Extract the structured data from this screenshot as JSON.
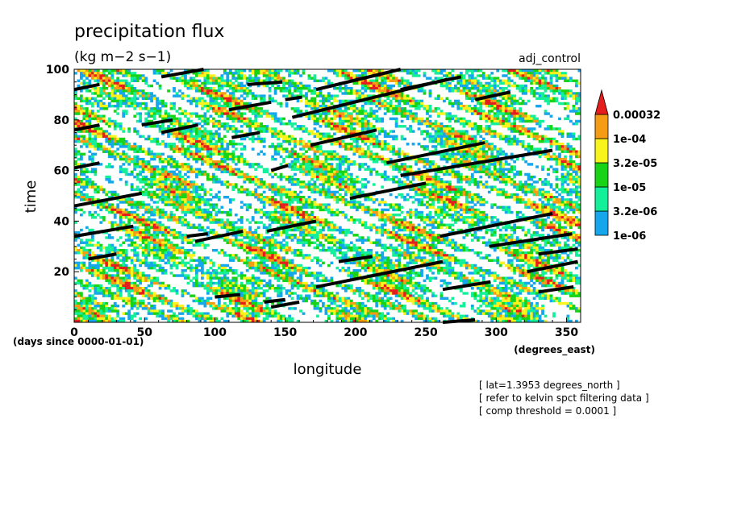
{
  "chart_data": {
    "type": "heatmap",
    "title": "precipitation flux",
    "subtitle": "(kg m−2 s−1)",
    "experiment": "adj_control",
    "xlabel": "longitude",
    "ylabel": "time",
    "x_unit_label": "(degrees_east)",
    "y_unit_label": "(days since 0000-01-01)",
    "xlim": [
      0,
      360
    ],
    "ylim": [
      0,
      100
    ],
    "x_ticks": [
      0,
      50,
      100,
      150,
      200,
      250,
      300,
      350
    ],
    "y_ticks": [
      20,
      40,
      60,
      80,
      100
    ],
    "colorbar": {
      "levels": [
        "1e-06",
        "3.2e-06",
        "1e-05",
        "3.2e-05",
        "1e-04",
        "0.00032"
      ],
      "colors": [
        "#16a6ec",
        "#14f09a",
        "#18d316",
        "#f8f41c",
        "#f49c14",
        "#e51d1d"
      ]
    },
    "kelvin_track_segments": [
      [
        [
          0,
          92
        ],
        [
          18,
          94
        ]
      ],
      [
        [
          62,
          97
        ],
        [
          92,
          100
        ]
      ],
      [
        [
          123,
          94
        ],
        [
          148,
          95
        ]
      ],
      [
        [
          172,
          92
        ],
        [
          232,
          100
        ]
      ],
      [
        [
          232,
          92
        ],
        [
          275,
          97
        ]
      ],
      [
        [
          0,
          76
        ],
        [
          18,
          78
        ]
      ],
      [
        [
          62,
          75
        ],
        [
          88,
          78
        ]
      ],
      [
        [
          110,
          84
        ],
        [
          140,
          87
        ]
      ],
      [
        [
          150,
          88
        ],
        [
          162,
          89
        ]
      ],
      [
        [
          155,
          81
        ],
        [
          265,
          96
        ]
      ],
      [
        [
          285,
          88
        ],
        [
          310,
          91
        ]
      ],
      [
        [
          112,
          73
        ],
        [
          132,
          75
        ]
      ],
      [
        [
          48,
          78
        ],
        [
          70,
          80
        ]
      ],
      [
        [
          168,
          70
        ],
        [
          215,
          76
        ]
      ],
      [
        [
          222,
          63
        ],
        [
          292,
          71
        ]
      ],
      [
        [
          0,
          61
        ],
        [
          18,
          63
        ]
      ],
      [
        [
          140,
          60
        ],
        [
          152,
          62
        ]
      ],
      [
        [
          232,
          58
        ],
        [
          340,
          68
        ]
      ],
      [
        [
          0,
          46
        ],
        [
          48,
          51
        ]
      ],
      [
        [
          196,
          49
        ],
        [
          250,
          55
        ]
      ],
      [
        [
          0,
          34
        ],
        [
          42,
          38
        ]
      ],
      [
        [
          80,
          34
        ],
        [
          95,
          35
        ]
      ],
      [
        [
          86,
          32
        ],
        [
          120,
          36
        ]
      ],
      [
        [
          137,
          36
        ],
        [
          172,
          40
        ]
      ],
      [
        [
          260,
          34
        ],
        [
          340,
          43
        ]
      ],
      [
        [
          295,
          30
        ],
        [
          354,
          35
        ]
      ],
      [
        [
          10,
          25
        ],
        [
          30,
          27
        ]
      ],
      [
        [
          188,
          24
        ],
        [
          212,
          26
        ]
      ],
      [
        [
          330,
          27
        ],
        [
          358,
          29
        ]
      ],
      [
        [
          172,
          14
        ],
        [
          262,
          24
        ]
      ],
      [
        [
          262,
          13
        ],
        [
          296,
          16
        ]
      ],
      [
        [
          330,
          12
        ],
        [
          355,
          14
        ]
      ],
      [
        [
          322,
          20
        ],
        [
          358,
          24
        ]
      ],
      [
        [
          100,
          10
        ],
        [
          118,
          11
        ]
      ],
      [
        [
          135,
          8
        ],
        [
          150,
          9
        ]
      ],
      [
        [
          140,
          6
        ],
        [
          160,
          8
        ]
      ],
      [
        [
          262,
          0
        ],
        [
          285,
          1
        ]
      ]
    ],
    "notes": [
      "[ lat=1.3953 degrees_north ]",
      "[ refer to kelvin spct filtering data ]",
      "[ comp threshold = 0.0001 ]"
    ]
  }
}
